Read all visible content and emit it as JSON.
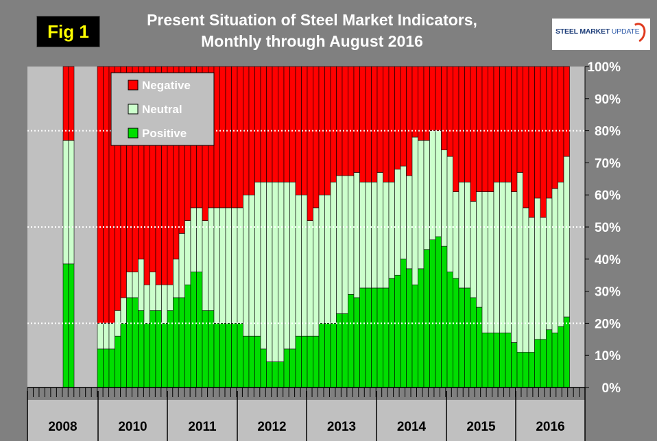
{
  "fig_label": "Fig 1",
  "title_line1": "Present Situation of Steel Market Indicators,",
  "title_line2": "Monthly through August 2016",
  "logo": {
    "word1": "STEEL MARKET",
    "word2": "UPDATE"
  },
  "colors": {
    "negative": "#ff0000",
    "neutral": "#ccffcc",
    "positive": "#00dd00",
    "plot_bg": "#c0c0c0",
    "background": "#808080"
  },
  "chart_data": {
    "type": "bar",
    "stacked": true,
    "ylim": [
      0,
      100
    ],
    "yticks": [
      "0%",
      "10%",
      "20%",
      "30%",
      "40%",
      "50%",
      "60%",
      "70%",
      "80%",
      "90%",
      "100%"
    ],
    "reference_lines": [
      20,
      50,
      80
    ],
    "legend": [
      "Negative",
      "Neutral",
      "Positive"
    ],
    "years": [
      "2008",
      "2010",
      "2011",
      "2012",
      "2013",
      "2014",
      "2015",
      "2016"
    ],
    "series": [
      {
        "name": "Positive",
        "values": [
          38.5,
          38.5,
          12,
          12,
          12,
          16,
          20,
          28,
          28,
          24,
          20,
          24,
          24,
          20,
          24,
          28,
          28,
          32,
          36,
          36,
          24,
          24,
          20,
          20,
          20,
          20,
          20,
          16,
          16,
          16,
          12,
          8,
          8,
          8,
          12,
          12,
          16,
          16,
          16,
          16,
          20,
          20,
          20,
          23,
          23,
          29,
          28,
          31,
          31,
          31,
          31,
          31,
          34,
          35,
          40,
          37,
          32,
          37,
          43,
          46,
          47,
          44,
          36,
          34,
          31,
          31,
          28,
          25,
          17,
          17,
          17,
          17,
          17,
          14,
          11,
          11,
          11,
          15,
          15,
          18,
          17,
          19,
          22
        ]
      },
      {
        "name": "Neutral",
        "values": [
          38.5,
          38.5,
          8,
          8,
          8,
          8,
          8,
          8,
          8,
          16,
          12,
          12,
          8,
          12,
          8,
          12,
          20,
          20,
          20,
          20,
          28,
          32,
          36,
          36,
          36,
          36,
          36,
          44,
          44,
          48,
          52,
          56,
          56,
          56,
          52,
          52,
          44,
          44,
          36,
          40,
          40,
          40,
          44,
          43,
          43,
          37,
          39,
          33,
          33,
          33,
          36,
          33,
          30,
          33,
          29,
          29,
          46,
          40,
          34,
          34,
          33,
          30,
          36,
          27,
          33,
          33,
          30,
          36,
          44,
          44,
          47,
          47,
          47,
          47,
          56,
          45,
          42,
          44,
          38,
          41,
          45,
          45,
          50
        ]
      },
      {
        "name": "Negative",
        "values": [
          23,
          23,
          80,
          80,
          80,
          76,
          72,
          64,
          64,
          60,
          68,
          64,
          68,
          68,
          68,
          60,
          52,
          48,
          44,
          44,
          48,
          44,
          44,
          44,
          44,
          44,
          44,
          40,
          40,
          36,
          36,
          36,
          36,
          36,
          36,
          36,
          40,
          40,
          48,
          44,
          40,
          40,
          36,
          34,
          34,
          34,
          33,
          36,
          36,
          36,
          33,
          36,
          36,
          32,
          31,
          34,
          22,
          23,
          23,
          20,
          20,
          26,
          28,
          39,
          36,
          36,
          42,
          39,
          39,
          39,
          36,
          36,
          36,
          39,
          33,
          44,
          47,
          41,
          47,
          41,
          38,
          36,
          28
        ]
      }
    ]
  }
}
